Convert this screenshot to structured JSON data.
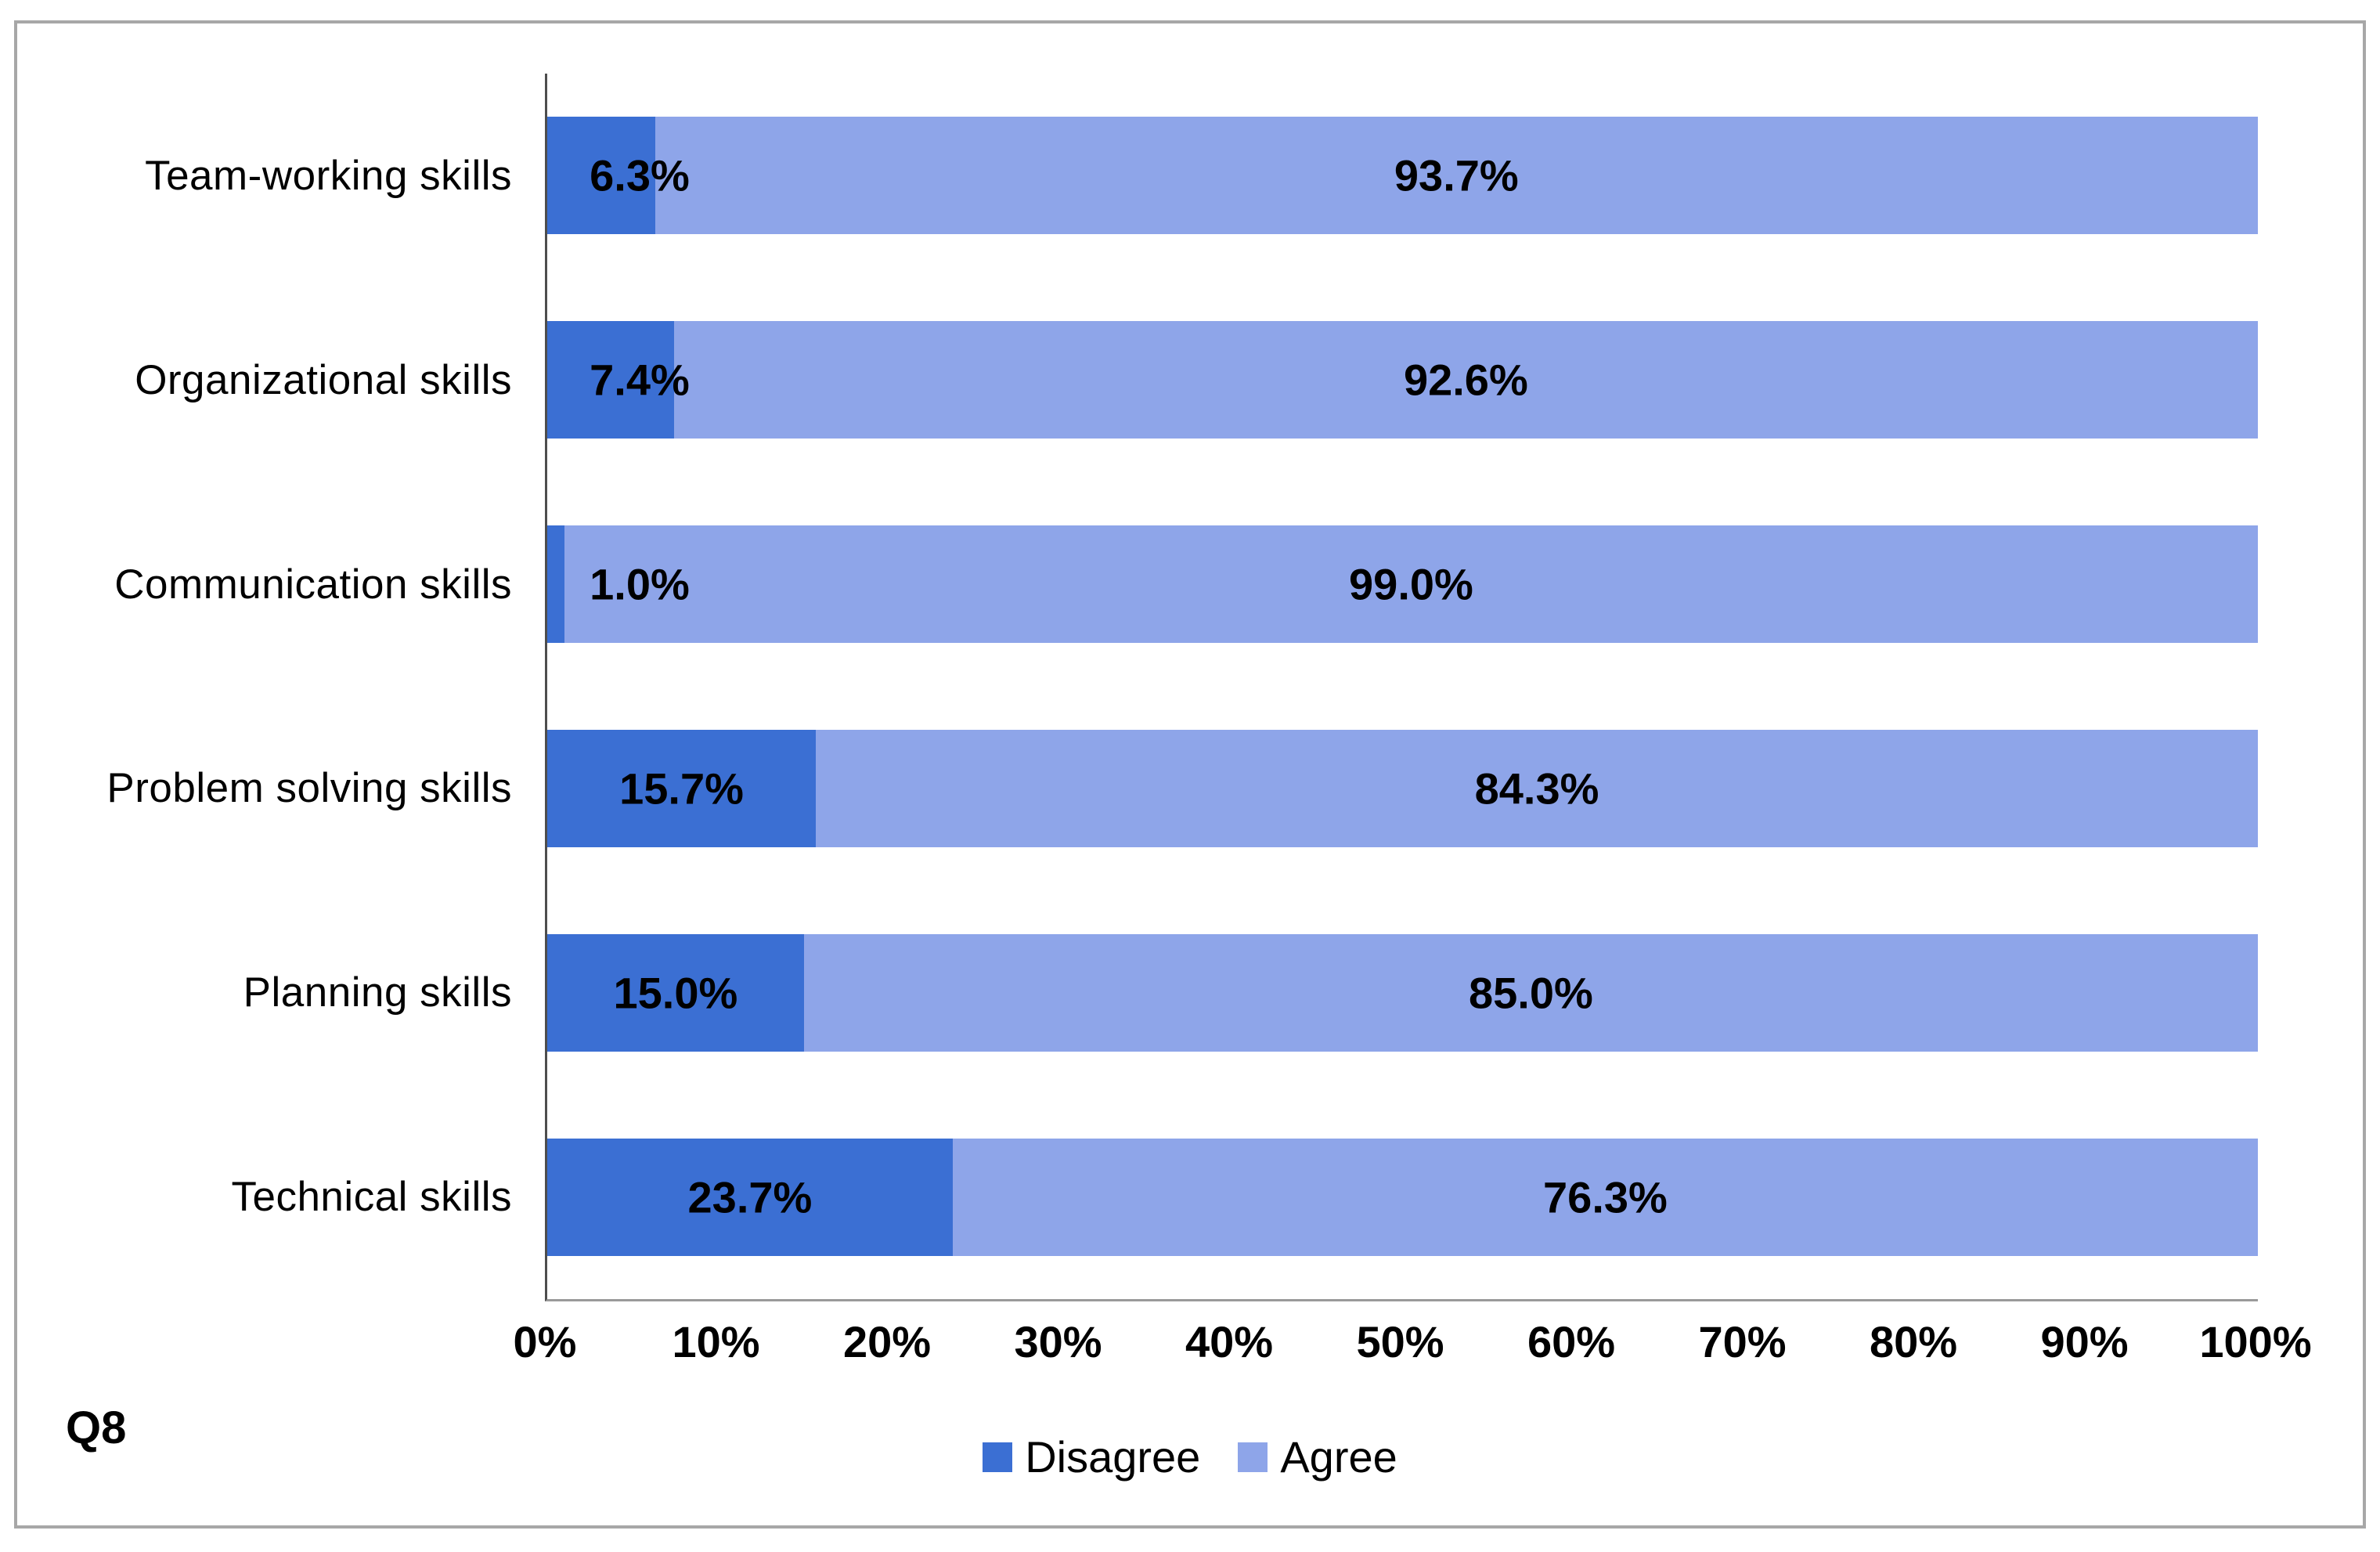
{
  "chart_data": {
    "type": "bar",
    "orientation": "horizontal",
    "stacked": true,
    "title": "",
    "categories": [
      "Team-working skills",
      "Organizational skills",
      "Communication skills",
      "Problem solving skills",
      "Planning skills",
      "Technical skills"
    ],
    "series": [
      {
        "name": "Disagree",
        "color": "#3B6FD3",
        "values": [
          6.3,
          7.4,
          1.0,
          15.7,
          15.0,
          23.7
        ],
        "labels": [
          "6.3%",
          "7.4%",
          "1.0%",
          "15.7%",
          "15.0%",
          "23.7%"
        ]
      },
      {
        "name": "Agree",
        "color": "#8EA5E9",
        "values": [
          93.7,
          92.6,
          99.0,
          84.3,
          85.0,
          76.3
        ],
        "labels": [
          "93.7%",
          "92.6%",
          "99.0%",
          "84.3%",
          "85.0%",
          "76.3%"
        ]
      }
    ],
    "x_axis": {
      "min": 0,
      "max": 100,
      "tick_labels": [
        "0%",
        "10%",
        "20%",
        "30%",
        "40%",
        "50%",
        "60%",
        "70%",
        "80%",
        "90%",
        "100%"
      ],
      "grid": false
    },
    "legend": {
      "position": "bottom-center",
      "items": [
        "Disagree",
        "Agree"
      ]
    },
    "annotations": {
      "question_label": "Q8"
    }
  },
  "colors": {
    "disagree": "#3B6FD3",
    "agree": "#8EA5E9",
    "axis_line": "#4d4d4d",
    "baseline": "#9a9a9a",
    "frame_border": "#a7a7a7",
    "label_text": "#000000"
  }
}
